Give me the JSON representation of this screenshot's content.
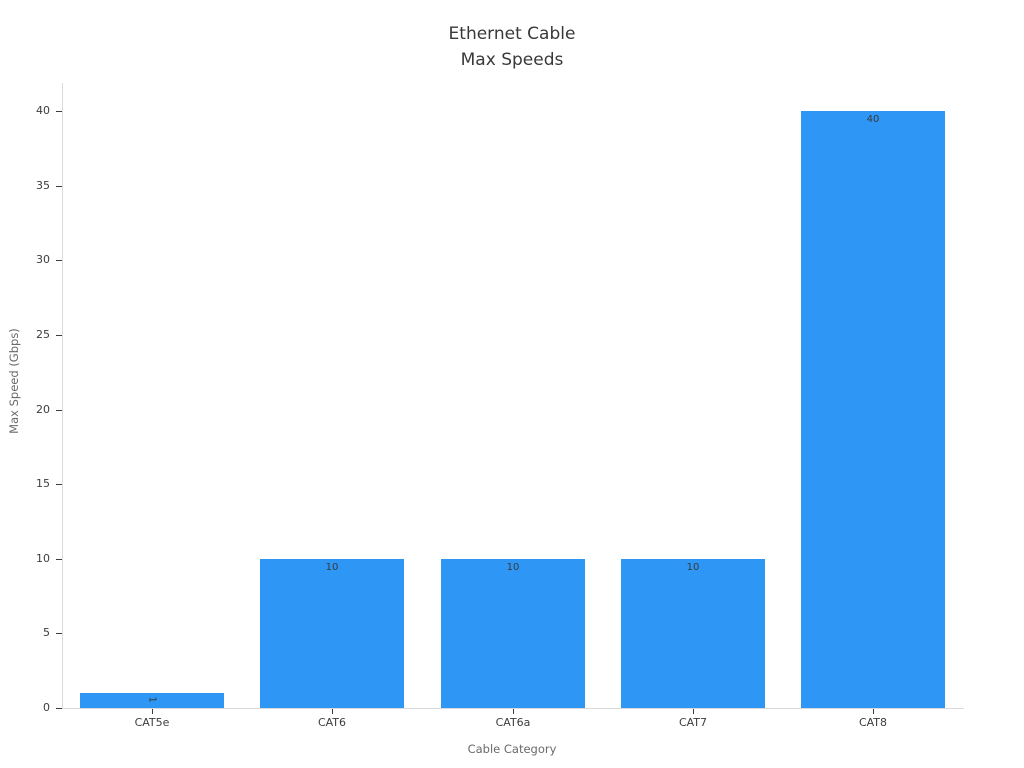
{
  "figure": {
    "background": "#ffffff"
  },
  "chart_data": {
    "type": "bar",
    "title": "Ethernet Cable\nMax Speeds",
    "title_lines": [
      "Ethernet Cable",
      "Max Speeds"
    ],
    "xlabel": "Cable Category",
    "ylabel": "Max Speed (Gbps)",
    "categories": [
      "CAT5e",
      "CAT6",
      "CAT6a",
      "CAT7",
      "CAT8"
    ],
    "values": [
      1,
      10,
      10,
      10,
      40
    ],
    "bar_labels": [
      {
        "text": "1",
        "rotated": true
      },
      {
        "text": "10",
        "rotated": false
      },
      {
        "text": "10",
        "rotated": false
      },
      {
        "text": "10",
        "rotated": false
      },
      {
        "text": "40",
        "rotated": false
      }
    ],
    "ylim": [
      0,
      40
    ],
    "yticks": [
      0,
      5,
      10,
      15,
      20,
      25,
      30,
      35,
      40
    ],
    "bar_color": "#2E96F5",
    "grid": false,
    "legend": false
  }
}
